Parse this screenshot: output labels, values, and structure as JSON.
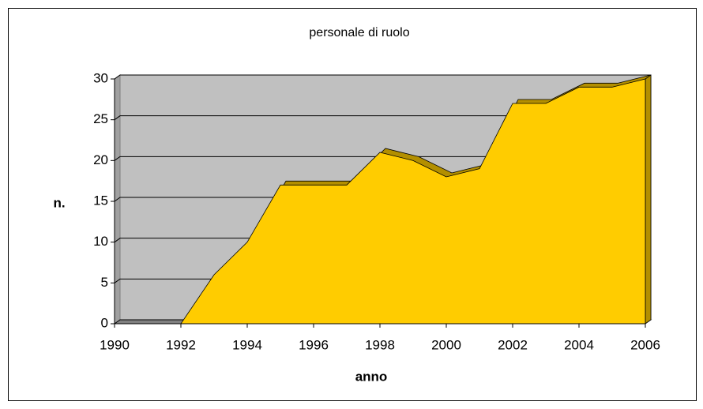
{
  "chart_data": {
    "type": "area",
    "title": "personale di ruolo",
    "xlabel": "anno",
    "ylabel": "n.",
    "x": [
      1990,
      1991,
      1992,
      1993,
      1994,
      1995,
      1996,
      1997,
      1998,
      1999,
      2000,
      2001,
      2002,
      2003,
      2004,
      2005,
      2006
    ],
    "values": [
      0,
      0,
      0,
      6,
      10,
      17,
      17,
      17,
      21,
      20,
      18,
      19,
      27,
      27,
      29,
      29,
      30
    ],
    "color": "#ffcc00",
    "xlim": [
      1990,
      2006
    ],
    "xticks": [
      1990,
      1992,
      1994,
      1996,
      1998,
      2000,
      2002,
      2004,
      2006
    ],
    "ylim": [
      0,
      30
    ],
    "yticks": [
      0,
      5,
      10,
      15,
      20,
      25,
      30
    ],
    "grid": true
  }
}
